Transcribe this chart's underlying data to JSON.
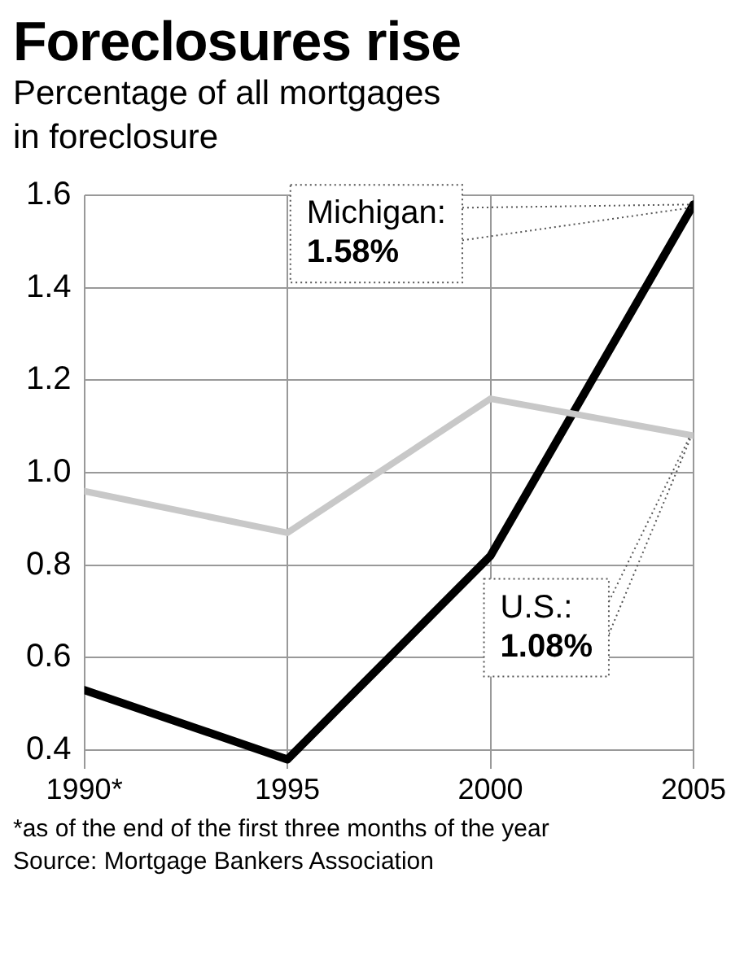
{
  "chart_data": {
    "type": "line",
    "title": "Foreclosures rise",
    "subtitle": "Percentage of all mortgages in foreclosure",
    "x": [
      1990,
      1995,
      2000,
      2005
    ],
    "series": [
      {
        "color": "#c8c8c8",
        "values": [
          0.96,
          0.87,
          1.16,
          1.08
        ]
      },
      {
        "color": "#000000",
        "values": [
          0.53,
          0.38,
          0.82,
          1.58
        ]
      }
    ],
    "xlim": [
      1990,
      2005
    ],
    "xticks": [
      {
        "value": 1990,
        "label": "1990*"
      },
      1995,
      2000,
      2005
    ],
    "ylim": [
      0.36,
      1.6
    ],
    "yticks": [
      0.4,
      0.6,
      0.8,
      {
        "value": 1.0,
        "label": "1.0"
      },
      1.2,
      1.4,
      1.6
    ],
    "grid": true,
    "marker": "none",
    "annotations": [
      {
        "text": "Michigan:\n1.58%",
        "x": 2005,
        "y": 1.58
      },
      {
        "text": "U.S.:\n1.08%",
        "x": 2005,
        "y": 1.08
      },
      "*as of the end of the first three months of the year",
      "Source: Mortgage Bankers Association"
    ]
  }
}
